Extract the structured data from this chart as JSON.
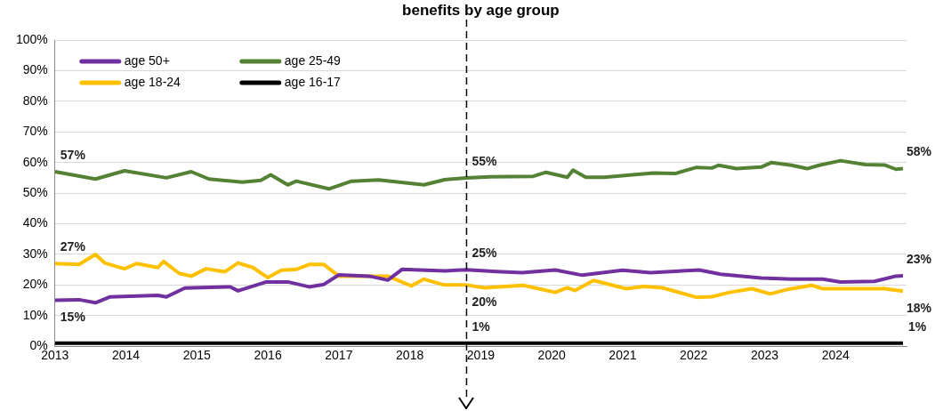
{
  "chart_data": {
    "type": "line",
    "title": "benefits by age group",
    "xlim": [
      2013,
      2025
    ],
    "xticks": [
      2013,
      2014,
      2015,
      2016,
      2017,
      2018,
      2019,
      2020,
      2021,
      2022,
      2023,
      2024
    ],
    "ylim": [
      0,
      100
    ],
    "yticks": [
      {
        "value": 0,
        "label": "0%"
      },
      {
        "value": 10,
        "label": "10%"
      },
      {
        "value": 20,
        "label": "20%"
      },
      {
        "value": 30,
        "label": "30%"
      },
      {
        "value": 40,
        "label": "40%"
      },
      {
        "value": 50,
        "label": "50%"
      },
      {
        "value": 60,
        "label": "60%"
      },
      {
        "value": 70,
        "label": "70%"
      },
      {
        "value": 80,
        "label": "80%"
      },
      {
        "value": 90,
        "label": "90%"
      },
      {
        "value": 100,
        "label": "100%"
      }
    ],
    "grid": "y",
    "legend": "top left",
    "marker": "none",
    "line_style": "solid",
    "series": [
      {
        "name": "age 50+",
        "color": "#7030a0",
        "x": [
          2013.0,
          2013.34,
          2013.57,
          2013.77,
          2014.45,
          2014.57,
          2014.83,
          2015.47,
          2015.58,
          2015.98,
          2016.28,
          2016.58,
          2016.79,
          2017.0,
          2017.43,
          2017.69,
          2017.89,
          2018.49,
          2018.8,
          2019.22,
          2019.58,
          2020.05,
          2020.43,
          2021.0,
          2021.39,
          2022.08,
          2022.38,
          2022.95,
          2023.38,
          2023.82,
          2024.07,
          2024.55,
          2024.85,
          2024.95
        ],
        "values": [
          15,
          15.2,
          14.2,
          16.1,
          16.6,
          16.1,
          19,
          19.4,
          18.1,
          21,
          21,
          19.4,
          20.2,
          23.3,
          22.9,
          21.6,
          25.1,
          24.6,
          25,
          24.4,
          24,
          24.9,
          23.2,
          24.8,
          24,
          24.9,
          23.5,
          22.3,
          21.9,
          21.9,
          21,
          21.2,
          22.9,
          23
        ]
      },
      {
        "name": "age 25-49",
        "color": "#548235",
        "x": [
          2013.0,
          2013.57,
          2013.98,
          2014.57,
          2014.92,
          2015.17,
          2015.64,
          2015.9,
          2016.04,
          2016.28,
          2016.4,
          2016.86,
          2017.18,
          2017.56,
          2018.2,
          2018.49,
          2018.8,
          2019.13,
          2019.74,
          2019.92,
          2020.22,
          2020.3,
          2020.48,
          2020.74,
          2021.43,
          2021.74,
          2022.04,
          2022.26,
          2022.35,
          2022.6,
          2022.95,
          2023.1,
          2023.38,
          2023.6,
          2023.77,
          2024.07,
          2024.42,
          2024.69,
          2024.85,
          2024.95
        ],
        "values": [
          57,
          54.6,
          57.3,
          55,
          57,
          54.6,
          53.6,
          54.2,
          56,
          52.7,
          53.9,
          51.4,
          53.9,
          54.3,
          52.7,
          54.4,
          55,
          55.3,
          55.5,
          56.8,
          55.2,
          57.5,
          55.2,
          55.2,
          56.6,
          56.4,
          58.4,
          58.2,
          59.1,
          58,
          58.5,
          60,
          59.1,
          58,
          59.1,
          60.6,
          59.3,
          59.2,
          57.8,
          58
        ]
      },
      {
        "name": "age 18-24",
        "color": "#ffc000",
        "x": [
          2013.0,
          2013.34,
          2013.57,
          2013.7,
          2013.98,
          2014.15,
          2014.45,
          2014.53,
          2014.75,
          2014.92,
          2015.13,
          2015.39,
          2015.58,
          2015.79,
          2016.0,
          2016.19,
          2016.4,
          2016.58,
          2016.79,
          2017.0,
          2017.43,
          2017.69,
          2018.02,
          2018.2,
          2018.49,
          2018.8,
          2019.05,
          2019.6,
          2020.05,
          2020.22,
          2020.33,
          2020.59,
          2021.05,
          2021.3,
          2021.56,
          2022.04,
          2022.26,
          2022.51,
          2022.82,
          2023.08,
          2023.33,
          2023.66,
          2023.82,
          2024.25,
          2024.69,
          2024.95
        ],
        "values": [
          27,
          26.7,
          30,
          27.2,
          25.3,
          27,
          25.7,
          27.7,
          23.8,
          22.9,
          25.3,
          24.3,
          27.2,
          25.7,
          22.4,
          24.8,
          25.1,
          26.7,
          26.7,
          22.9,
          22.9,
          22.9,
          19.7,
          21.9,
          20,
          20,
          19.1,
          19.9,
          17.6,
          19.1,
          18.2,
          21.5,
          18.8,
          19.5,
          19.1,
          16,
          16.2,
          17.6,
          18.8,
          17.1,
          18.6,
          19.9,
          18.8,
          18.8,
          18.8,
          18
        ]
      },
      {
        "name": "age 16-17",
        "color": "#000000",
        "x": [
          2013.0,
          2016.0,
          2018.8,
          2022.0,
          2024.95
        ],
        "values": [
          1,
          1,
          1,
          1,
          1
        ]
      }
    ],
    "annotations": [
      {
        "text": "57%",
        "x": 2013.0,
        "y": 57
      },
      {
        "text": "27%",
        "x": 2013.0,
        "y": 27
      },
      {
        "text": "15%",
        "x": 2013.0,
        "y": 15
      },
      {
        "text": "55%",
        "x": 2018.8,
        "y": 55
      },
      {
        "text": "25%",
        "x": 2018.8,
        "y": 25
      },
      {
        "text": "20%",
        "x": 2018.8,
        "y": 20
      },
      {
        "text": "1%",
        "x": 2018.8,
        "y": 1
      },
      {
        "text": "58%",
        "x": 2024.95,
        "y": 58
      },
      {
        "text": "23%",
        "x": 2024.95,
        "y": 23
      },
      {
        "text": "18%",
        "x": 2024.95,
        "y": 18
      },
      {
        "text": "1%",
        "x": 2024.95,
        "y": 1
      }
    ],
    "ref_lines": [
      {
        "axis": "x",
        "value": 2018.8,
        "line_style": "dashed",
        "color": "#000000"
      }
    ]
  }
}
